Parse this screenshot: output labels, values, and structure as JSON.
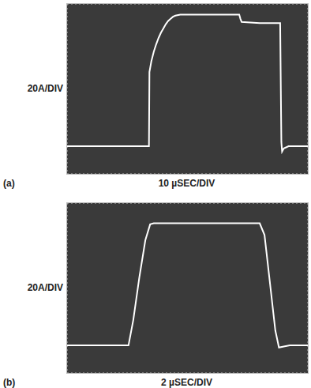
{
  "chart_data": [
    {
      "type": "line",
      "panel": "(a)",
      "y_label": "20A/DIV",
      "x_label": "10 µSEC/DIV",
      "x": [
        0,
        34,
        34.2,
        35,
        36,
        37,
        38,
        39,
        40,
        41,
        42,
        43,
        44,
        45,
        47,
        50,
        60,
        71.5,
        72,
        72.5,
        80,
        88.5,
        89,
        89.3,
        90,
        92,
        100
      ],
      "values": [
        26,
        26,
        96,
        106,
        115,
        122,
        128,
        133,
        137,
        141,
        144,
        146,
        148,
        149,
        150,
        150,
        150,
        150,
        146,
        143,
        142,
        142,
        30,
        21,
        24,
        26,
        26
      ],
      "color": "#ffffff",
      "xlim": [
        0,
        100
      ],
      "xticks": [
        0,
        10,
        20,
        30,
        40,
        50,
        60,
        70,
        80,
        90,
        100
      ],
      "ylim": [
        0,
        160
      ],
      "yticks": [
        0,
        20,
        40,
        60,
        80,
        100,
        120,
        140,
        160
      ],
      "grid": true,
      "tick_labels": false
    },
    {
      "type": "line",
      "panel": "(b)",
      "y_label": "20A/DIV",
      "x_label": "2 µSEC/DIV",
      "x": [
        0,
        5.1,
        5.5,
        6,
        6.5,
        6.9,
        7.2,
        16,
        16.4,
        16.9,
        17.3,
        17.6,
        18,
        18.5,
        20
      ],
      "values": [
        26,
        26,
        50,
        90,
        125,
        140,
        141,
        141,
        130,
        80,
        40,
        24,
        25,
        26,
        26
      ],
      "color": "#ffffff",
      "xlim": [
        0,
        20
      ],
      "xticks": [
        0,
        2,
        4,
        6,
        8,
        10,
        12,
        14,
        16,
        18,
        20
      ],
      "ylim": [
        0,
        160
      ],
      "yticks": [
        0,
        20,
        40,
        60,
        80,
        100,
        120,
        140,
        160
      ],
      "grid": true,
      "tick_labels": false
    }
  ]
}
